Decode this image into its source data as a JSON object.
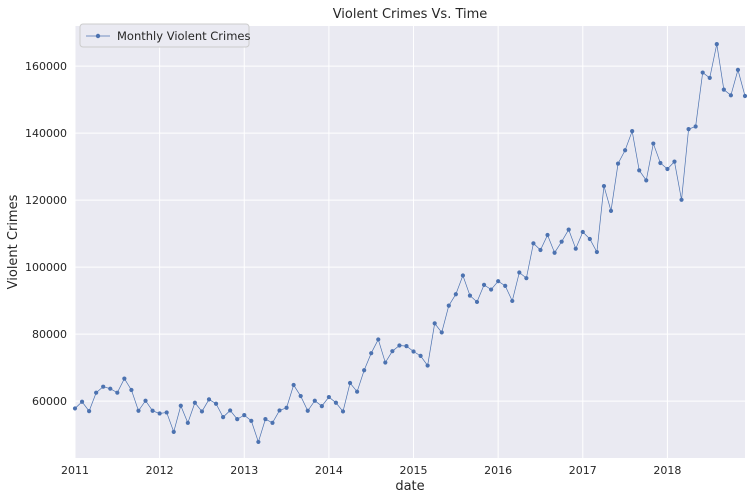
{
  "chart_data": {
    "type": "line",
    "title": "Violent Crimes Vs. Time",
    "xlabel": "date",
    "ylabel": "Violent Crimes",
    "legend_position": "top-left",
    "grid": true,
    "background": "#eaeaf2",
    "series": [
      {
        "name": "Monthly Violent Crimes",
        "color": "#4c72b0",
        "marker": "circle",
        "x": [
          "2011-01",
          "2011-02",
          "2011-03",
          "2011-04",
          "2011-05",
          "2011-06",
          "2011-07",
          "2011-08",
          "2011-09",
          "2011-10",
          "2011-11",
          "2011-12",
          "2012-01",
          "2012-02",
          "2012-03",
          "2012-04",
          "2012-05",
          "2012-06",
          "2012-07",
          "2012-08",
          "2012-09",
          "2012-10",
          "2012-11",
          "2012-12",
          "2013-01",
          "2013-02",
          "2013-03",
          "2013-04",
          "2013-05",
          "2013-06",
          "2013-07",
          "2013-08",
          "2013-09",
          "2013-10",
          "2013-11",
          "2013-12",
          "2014-01",
          "2014-02",
          "2014-03",
          "2014-04",
          "2014-05",
          "2014-06",
          "2014-07",
          "2014-08",
          "2014-09",
          "2014-10",
          "2014-11",
          "2014-12",
          "2015-01",
          "2015-02",
          "2015-03",
          "2015-04",
          "2015-05",
          "2015-06",
          "2015-07",
          "2015-08",
          "2015-09",
          "2015-10",
          "2015-11",
          "2015-12",
          "2016-01",
          "2016-02",
          "2016-03",
          "2016-04",
          "2016-05",
          "2016-06",
          "2016-07",
          "2016-08",
          "2016-09",
          "2016-10",
          "2016-11",
          "2016-12",
          "2017-01",
          "2017-02",
          "2017-03",
          "2017-04",
          "2017-05",
          "2017-06",
          "2017-07",
          "2017-08",
          "2017-09",
          "2017-10",
          "2017-11",
          "2017-12",
          "2018-01",
          "2018-02",
          "2018-03",
          "2018-04",
          "2018-05",
          "2018-06",
          "2018-07",
          "2018-08",
          "2018-09",
          "2018-10",
          "2018-11",
          "2018-12"
        ],
        "values": [
          57800,
          59800,
          57000,
          62500,
          64300,
          63700,
          62500,
          66700,
          63300,
          57100,
          60100,
          57100,
          56300,
          56600,
          50800,
          58600,
          53500,
          59500,
          56900,
          60500,
          59200,
          55200,
          57200,
          54600,
          55800,
          54100,
          47800,
          54600,
          53500,
          57200,
          58000,
          64800,
          61500,
          57100,
          60100,
          58500,
          61200,
          59500,
          56900,
          65400,
          62800,
          69200,
          74300,
          78400,
          71500,
          74900,
          76600,
          76400,
          74800,
          73500,
          70600,
          83200,
          80500,
          88500,
          91900,
          97500,
          91500,
          89600,
          94700,
          93300,
          95800,
          94400,
          89900,
          98400,
          96700,
          107100,
          105100,
          109600,
          104300,
          107600,
          111200,
          105500,
          110500,
          108400,
          104500,
          124200,
          116800,
          130900,
          134900,
          140600,
          128900,
          125900,
          136900,
          131100,
          129300,
          131500,
          120100,
          141200,
          142000,
          158100,
          156500,
          166600,
          153000,
          151300,
          158900,
          151100
        ]
      }
    ],
    "xlim": [
      "2011-01",
      "2018-12"
    ],
    "ylim": [
      43000,
      172000
    ],
    "x_ticks": [
      "2011",
      "2012",
      "2013",
      "2014",
      "2015",
      "2016",
      "2017",
      "2018"
    ],
    "y_ticks": [
      60000,
      80000,
      100000,
      120000,
      140000,
      160000
    ]
  }
}
